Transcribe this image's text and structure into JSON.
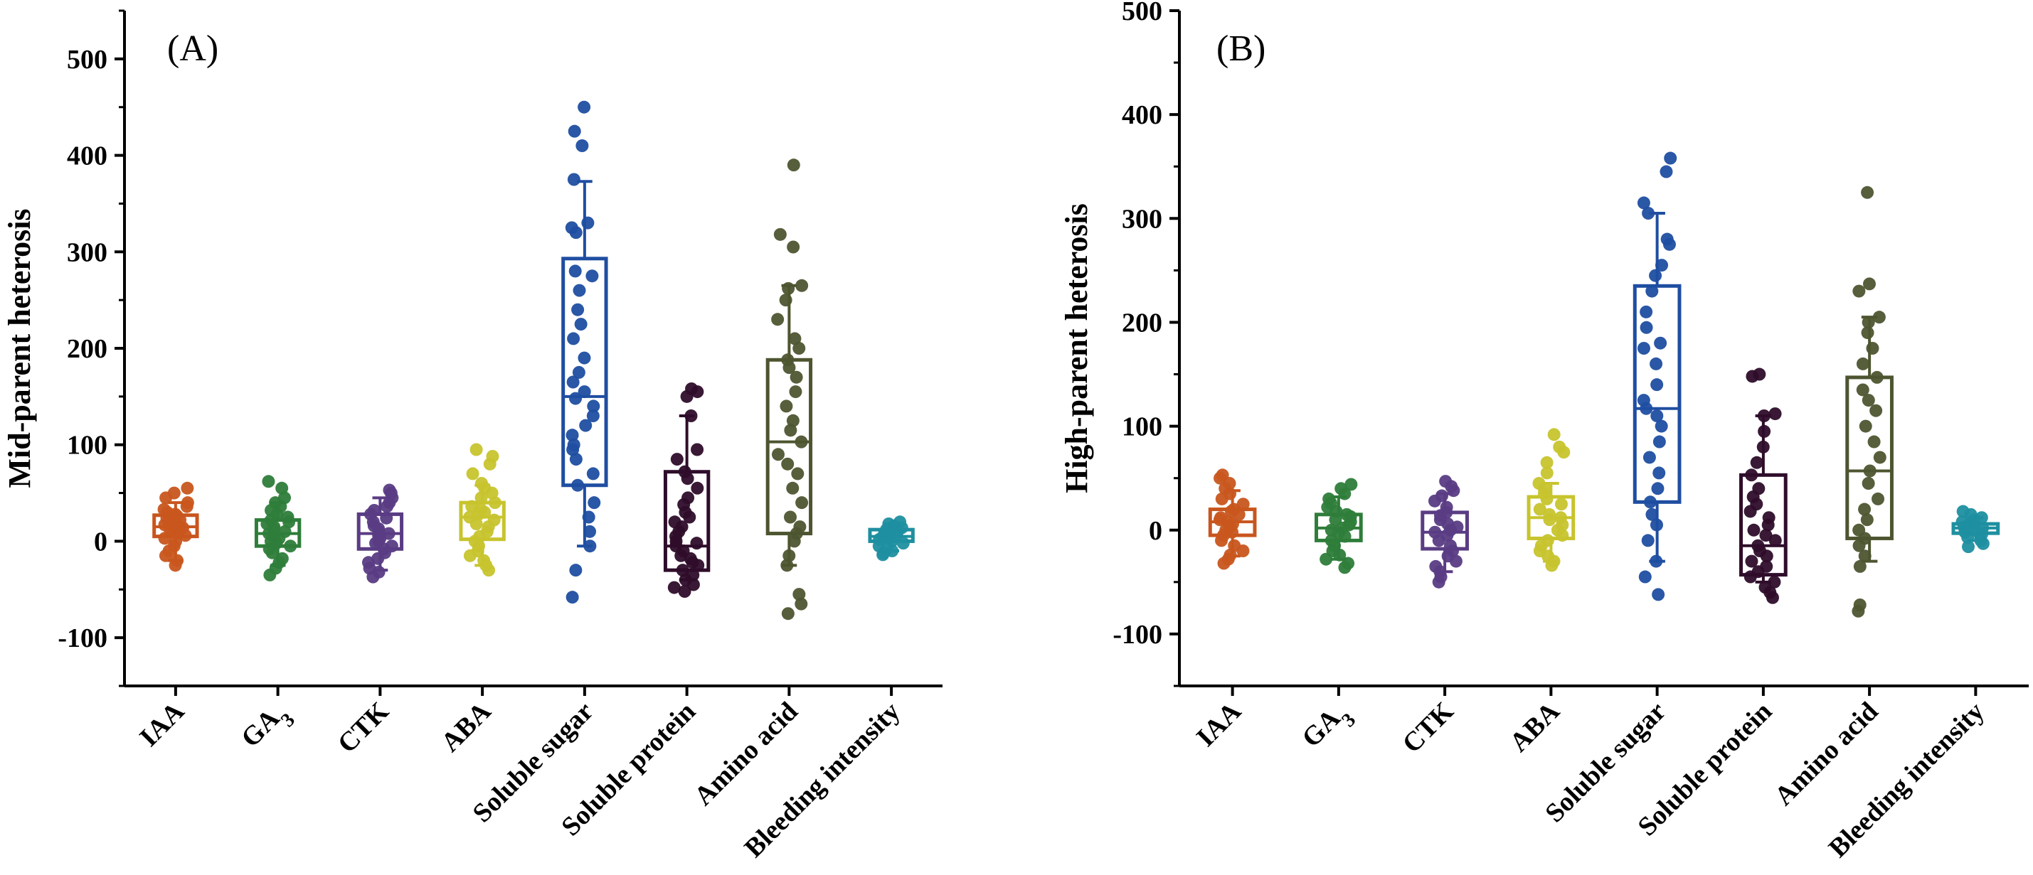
{
  "chart_data": [
    {
      "type": "box",
      "panel_label": "(A)",
      "ylabel": "Mid-parent heterosis",
      "ylim": [
        -150,
        550
      ],
      "yticks": [
        -100,
        0,
        100,
        200,
        300,
        400,
        500
      ],
      "grid": false,
      "categories": [
        {
          "label": "IAA",
          "color": "#C8561E",
          "min": -20,
          "q1": 5,
          "median": 15,
          "q3": 27,
          "max": 40,
          "points": [
            -25,
            -20,
            -15,
            -10,
            -5,
            0,
            3,
            6,
            8,
            10,
            12,
            14,
            15,
            17,
            18,
            20,
            22,
            24,
            26,
            28,
            30,
            33,
            36,
            40,
            45,
            50,
            55
          ]
        },
        {
          "label": "GA3",
          "label_main": "GA",
          "label_sub": "3",
          "color": "#2E7D3A",
          "min": -25,
          "q1": -5,
          "median": 8,
          "q3": 22,
          "max": 40,
          "points": [
            -35,
            -28,
            -22,
            -18,
            -12,
            -8,
            -5,
            -2,
            0,
            3,
            5,
            8,
            10,
            12,
            15,
            18,
            20,
            22,
            25,
            28,
            32,
            36,
            40,
            45,
            55,
            62
          ]
        },
        {
          "label": "CTK",
          "color": "#5A3C84",
          "min": -30,
          "q1": -8,
          "median": 8,
          "q3": 28,
          "max": 45,
          "points": [
            -37,
            -32,
            -28,
            -22,
            -18,
            -12,
            -8,
            -5,
            -2,
            0,
            3,
            6,
            8,
            10,
            13,
            16,
            20,
            24,
            28,
            32,
            36,
            40,
            45,
            50,
            53
          ]
        },
        {
          "label": "ABA",
          "color": "#C7C42E",
          "min": -25,
          "q1": 2,
          "median": 25,
          "q3": 40,
          "max": 58,
          "points": [
            -30,
            -25,
            -20,
            -15,
            -10,
            -5,
            0,
            5,
            10,
            15,
            18,
            22,
            25,
            28,
            30,
            33,
            36,
            40,
            45,
            50,
            55,
            60,
            70,
            80,
            88,
            95
          ]
        },
        {
          "label": "Soluble sugar",
          "color": "#1F4EA1",
          "min": -5,
          "q1": 58,
          "median": 150,
          "q3": 293,
          "max": 373,
          "points": [
            -58,
            -30,
            -5,
            10,
            25,
            40,
            58,
            70,
            85,
            95,
            100,
            110,
            120,
            130,
            140,
            148,
            155,
            165,
            175,
            190,
            210,
            225,
            240,
            260,
            275,
            280,
            320,
            325,
            330,
            375,
            410,
            425,
            450
          ]
        },
        {
          "label": "Soluble protein",
          "color": "#2E0D2A",
          "min": -40,
          "q1": -30,
          "median": -5,
          "q3": 72,
          "max": 130,
          "points": [
            -52,
            -48,
            -45,
            -40,
            -35,
            -30,
            -25,
            -22,
            -18,
            -15,
            -10,
            -5,
            -2,
            0,
            5,
            10,
            15,
            20,
            25,
            30,
            38,
            45,
            55,
            65,
            72,
            85,
            95,
            130,
            150,
            155,
            158
          ]
        },
        {
          "label": "Amino acid",
          "color": "#4D5530",
          "min": -25,
          "q1": 8,
          "median": 103,
          "q3": 188,
          "max": 265,
          "points": [
            -75,
            -65,
            -55,
            -25,
            -15,
            0,
            8,
            15,
            25,
            40,
            55,
            70,
            80,
            90,
            103,
            115,
            125,
            140,
            155,
            170,
            180,
            188,
            200,
            210,
            230,
            250,
            262,
            265,
            305,
            318,
            390
          ]
        },
        {
          "label": "Bleeding intensity",
          "color": "#1E8FA0",
          "min": -10,
          "q1": 0,
          "median": 5,
          "q3": 12,
          "max": 18,
          "points": [
            -14,
            -12,
            -10,
            -8,
            -5,
            -2,
            0,
            2,
            4,
            5,
            6,
            8,
            10,
            12,
            14,
            16,
            18,
            20
          ]
        }
      ]
    },
    {
      "type": "box",
      "panel_label": "(B)",
      "ylabel": "High-parent heterosis",
      "ylim": [
        -150,
        500
      ],
      "yticks": [
        -100,
        0,
        100,
        200,
        300,
        400,
        500
      ],
      "grid": false,
      "categories": [
        {
          "label": "IAA",
          "color": "#C8561E",
          "min": -25,
          "q1": -5,
          "median": 8,
          "q3": 20,
          "max": 38,
          "points": [
            -32,
            -28,
            -24,
            -20,
            -15,
            -10,
            -5,
            -2,
            0,
            3,
            6,
            8,
            10,
            12,
            15,
            18,
            20,
            25,
            30,
            35,
            40,
            45,
            50,
            53
          ]
        },
        {
          "label": "GA3",
          "label_main": "GA",
          "label_sub": "3",
          "color": "#2E7D3A",
          "min": -28,
          "q1": -10,
          "median": 2,
          "q3": 15,
          "max": 32,
          "points": [
            -36,
            -32,
            -28,
            -24,
            -20,
            -15,
            -10,
            -6,
            -3,
            0,
            2,
            5,
            8,
            10,
            13,
            15,
            18,
            22,
            26,
            30,
            35,
            40,
            44
          ]
        },
        {
          "label": "CTK",
          "color": "#5A3C84",
          "min": -40,
          "q1": -18,
          "median": -2,
          "q3": 17,
          "max": 35,
          "points": [
            -50,
            -45,
            -40,
            -35,
            -30,
            -25,
            -20,
            -15,
            -10,
            -5,
            -2,
            0,
            3,
            6,
            10,
            14,
            17,
            22,
            28,
            33,
            38,
            42,
            47
          ]
        },
        {
          "label": "ABA",
          "color": "#C7C42E",
          "min": -30,
          "q1": -8,
          "median": 12,
          "q3": 32,
          "max": 45,
          "points": [
            -34,
            -30,
            -25,
            -20,
            -15,
            -10,
            -5,
            0,
            5,
            10,
            12,
            15,
            20,
            25,
            30,
            35,
            40,
            45,
            55,
            65,
            75,
            80,
            92
          ]
        },
        {
          "label": "Soluble sugar",
          "color": "#1F4EA1",
          "min": -30,
          "q1": 27,
          "median": 117,
          "q3": 235,
          "max": 305,
          "points": [
            -62,
            -45,
            -30,
            -10,
            5,
            15,
            27,
            40,
            55,
            70,
            85,
            100,
            110,
            117,
            125,
            140,
            160,
            175,
            180,
            195,
            210,
            230,
            245,
            255,
            275,
            280,
            305,
            315,
            345,
            358
          ]
        },
        {
          "label": "Soluble protein",
          "color": "#2E0D2A",
          "min": -50,
          "q1": -43,
          "median": -15,
          "q3": 53,
          "max": 110,
          "points": [
            -65,
            -60,
            -55,
            -50,
            -45,
            -40,
            -35,
            -30,
            -25,
            -20,
            -15,
            -10,
            -5,
            0,
            5,
            12,
            18,
            25,
            32,
            40,
            53,
            65,
            80,
            95,
            110,
            112,
            148,
            150
          ]
        },
        {
          "label": "Amino acid",
          "color": "#4D5530",
          "min": -30,
          "q1": -8,
          "median": 57,
          "q3": 147,
          "max": 205,
          "points": [
            -78,
            -72,
            -35,
            -25,
            -15,
            -8,
            0,
            10,
            20,
            30,
            45,
            57,
            70,
            85,
            100,
            115,
            125,
            135,
            147,
            160,
            175,
            190,
            200,
            205,
            230,
            237,
            325
          ]
        },
        {
          "label": "Bleeding intensity",
          "color": "#1E8FA0",
          "min": -10,
          "q1": -3,
          "median": 2,
          "q3": 6,
          "max": 12,
          "points": [
            -16,
            -13,
            -10,
            -7,
            -4,
            -2,
            0,
            2,
            3,
            5,
            6,
            8,
            10,
            12,
            15,
            18
          ]
        }
      ]
    }
  ]
}
